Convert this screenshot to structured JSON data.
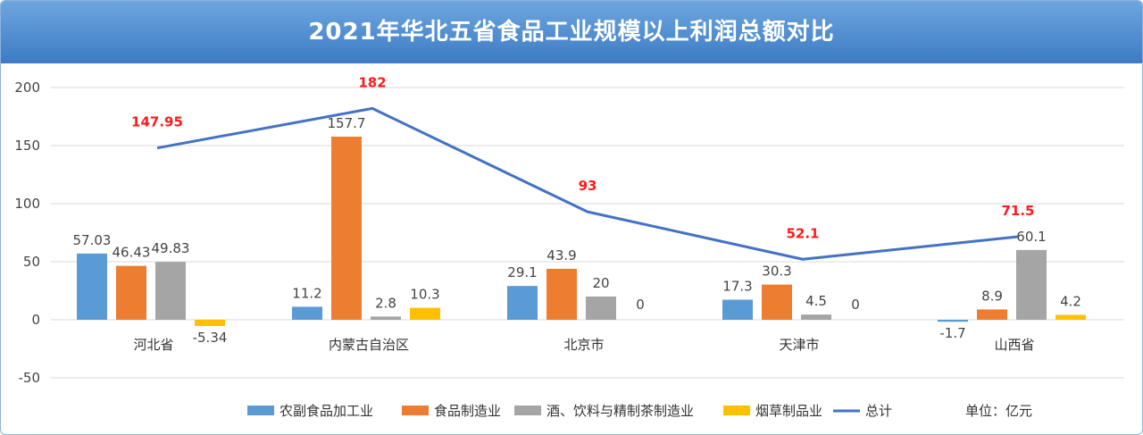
{
  "title": "2021年华北五省食品工业规模以上利润总额对比",
  "unit_label": "单位：亿元",
  "colors": {
    "header": "#4a88cc",
    "agri": "#5b9bd5",
    "food": "#ed7d31",
    "liquor": "#a5a5a5",
    "tobacco": "#ffc000",
    "total": "#4472c4",
    "total_label": "#ff1a1a",
    "grid": "#d9d9d9"
  },
  "chart_data": {
    "type": "bar",
    "title": "2021年华北五省食品工业规模以上利润总额对比",
    "xlabel": "",
    "ylabel": "",
    "ylim": [
      -50,
      200
    ],
    "yticks": [
      200,
      150,
      100,
      50,
      0,
      -50
    ],
    "grid": true,
    "legend_position": "bottom",
    "categories": [
      "河北省",
      "内蒙古自治区",
      "北京市",
      "天津市",
      "山西省"
    ],
    "series": [
      {
        "name": "农副食品加工业",
        "kind": "bar",
        "values": [
          57.03,
          11.2,
          29.1,
          17.3,
          -1.7
        ],
        "labels": [
          "57.03",
          "11.2",
          "29.1",
          "17.3",
          "-1.7"
        ]
      },
      {
        "name": "食品制造业",
        "kind": "bar",
        "values": [
          46.43,
          157.7,
          43.9,
          30.3,
          8.9
        ],
        "labels": [
          "46.43",
          "157.7",
          "43.9",
          "30.3",
          "8.9"
        ]
      },
      {
        "name": "酒、饮料与精制茶制造业",
        "kind": "bar",
        "values": [
          49.83,
          2.8,
          20,
          4.5,
          60.1
        ],
        "labels": [
          "49.83",
          "2.8",
          "20",
          "4.5",
          "60.1"
        ]
      },
      {
        "name": "烟草制品业",
        "kind": "bar",
        "values": [
          -5.34,
          10.3,
          0,
          0,
          4.2
        ],
        "labels": [
          "-5.34",
          "10.3",
          "0",
          "0",
          "4.2"
        ]
      },
      {
        "name": "总计",
        "kind": "line",
        "values": [
          147.95,
          182,
          93,
          52.1,
          71.5
        ],
        "labels": [
          "147.95",
          "182",
          "93",
          "52.1",
          "71.5"
        ]
      }
    ]
  }
}
